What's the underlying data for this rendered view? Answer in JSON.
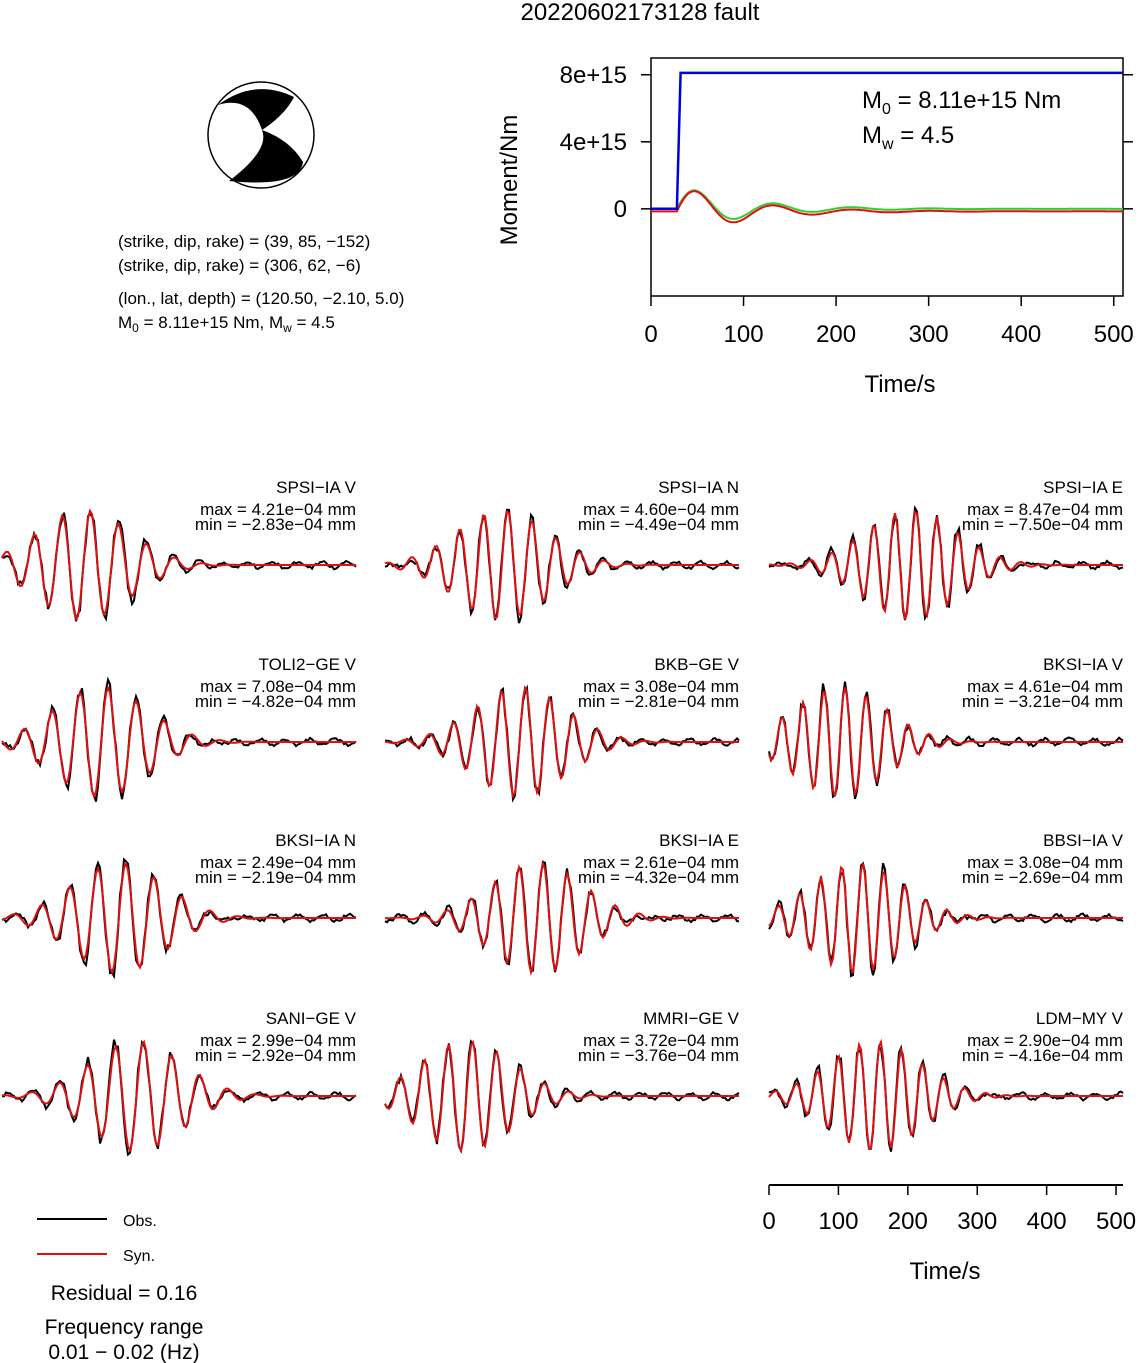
{
  "title": "20220602173128 fault",
  "mechanism": {
    "np1": "(strike, dip, rake) = (39, 85, −152)",
    "np2": "(strike, dip, rake) = (306, 62, −6)",
    "location": "(lon., lat, depth) = (120.50, −2.10, 5.0)",
    "moment_line": "M0 = 8.11e+15 Nm, Mw = 4.5",
    "moment_line_prefix": "M",
    "moment_line_sub": "0",
    "moment_line_rest": " = 8.11e+15 Nm, M",
    "moment_line_sub2": "w",
    "moment_line_end": " = 4.5"
  },
  "moment_plot": {
    "ylabel": "Moment/Nm",
    "xlabel": "Time/s",
    "yticks": [
      "0",
      "4e+15",
      "8e+15"
    ],
    "xticks": [
      "0",
      "100",
      "200",
      "300",
      "400",
      "500"
    ],
    "m0_label": "M",
    "m0_sub": "0",
    "m0_value": " = 8.11e+15 Nm",
    "mw_label": "M",
    "mw_sub": "w",
    "mw_value": " = 4.5",
    "colors": {
      "moment": "#0000dd",
      "trace_red": "#dd1111",
      "trace_green": "#33cc33"
    }
  },
  "chart_data": [
    {
      "type": "line",
      "title": "",
      "xlabel": "Time/s",
      "ylabel": "Moment/Nm",
      "xlim": [
        0,
        510
      ],
      "ylim": [
        -5200000000000000.0,
        9000000000000000.0
      ],
      "series": [
        {
          "x": [
            0,
            28,
            32,
            510
          ],
          "y": [
            0,
            0,
            8110000000000000.0,
            8110000000000000.0
          ]
        }
      ]
    },
    {
      "type": "line",
      "xlabel": "Time/s",
      "xlim": [
        0,
        510
      ],
      "stations": [
        {
          "label": "SPSI−IA V",
          "max": "max = 4.21e−04 mm",
          "min": "min = −2.83e−04 mm"
        },
        {
          "label": "SPSI−IA N",
          "max": "max = 4.60e−04 mm",
          "min": "min = −4.49e−04 mm"
        },
        {
          "label": "SPSI−IA E",
          "max": "max = 8.47e−04 mm",
          "min": "min = −7.50e−04 mm"
        },
        {
          "label": "TOLI2−GE V",
          "max": "max = 7.08e−04 mm",
          "min": "min = −4.82e−04 mm"
        },
        {
          "label": "BKB−GE V",
          "max": "max = 3.08e−04 mm",
          "min": "min = −2.81e−04 mm"
        },
        {
          "label": "BKSI−IA V",
          "max": "max = 4.61e−04 mm",
          "min": "min = −3.21e−04 mm"
        },
        {
          "label": "BKSI−IA N",
          "max": "max = 2.49e−04 mm",
          "min": "min = −2.19e−04 mm"
        },
        {
          "label": "BKSI−IA E",
          "max": "max = 2.61e−04 mm",
          "min": "min = −4.32e−04 mm"
        },
        {
          "label": "BBSI−IA V",
          "max": "max = 3.08e−04 mm",
          "min": "min = −2.69e−04 mm"
        },
        {
          "label": "SANI−GE V",
          "max": "max = 2.99e−04 mm",
          "min": "min = −2.92e−04 mm"
        },
        {
          "label": "MMRI−GE V",
          "max": "max = 3.72e−04 mm",
          "min": "min = −3.76e−04 mm"
        },
        {
          "label": "LDM−MY V",
          "max": "max = 2.90e−04 mm",
          "min": "min = −4.16e−04 mm"
        }
      ],
      "xticks": [
        "0",
        "100",
        "200",
        "300",
        "400",
        "500"
      ]
    }
  ],
  "legend": {
    "obs": "Obs.",
    "syn": "Syn."
  },
  "residual": "Residual = 0.16",
  "freq_title": "Frequency range",
  "freq_value": "0.01 − 0.02 (Hz)"
}
